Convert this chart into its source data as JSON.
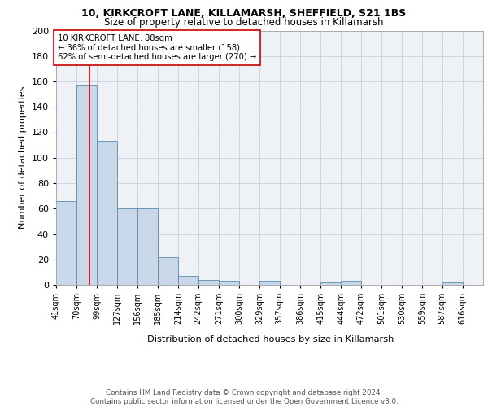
{
  "title1": "10, KIRKCROFT LANE, KILLAMARSH, SHEFFIELD, S21 1BS",
  "title2": "Size of property relative to detached houses in Killamarsh",
  "xlabel": "Distribution of detached houses by size in Killamarsh",
  "ylabel": "Number of detached properties",
  "bin_labels": [
    "41sqm",
    "70sqm",
    "99sqm",
    "127sqm",
    "156sqm",
    "185sqm",
    "214sqm",
    "242sqm",
    "271sqm",
    "300sqm",
    "329sqm",
    "357sqm",
    "386sqm",
    "415sqm",
    "444sqm",
    "472sqm",
    "501sqm",
    "530sqm",
    "559sqm",
    "587sqm",
    "616sqm"
  ],
  "bin_edges": [
    41,
    70,
    99,
    127,
    156,
    185,
    214,
    242,
    271,
    300,
    329,
    357,
    386,
    415,
    444,
    472,
    501,
    530,
    559,
    587,
    616
  ],
  "bar_heights": [
    66,
    157,
    113,
    60,
    60,
    22,
    7,
    4,
    3,
    0,
    3,
    0,
    0,
    2,
    3,
    0,
    0,
    0,
    0,
    2,
    0
  ],
  "bar_color": "#c8d8e8",
  "bar_edge_color": "#5a8ab0",
  "property_line_x": 88,
  "property_line_color": "#cc0000",
  "annotation_text": "10 KIRKCROFT LANE: 88sqm\n← 36% of detached houses are smaller (158)\n62% of semi-detached houses are larger (270) →",
  "annotation_box_color": "#ffffff",
  "annotation_box_edge": "#cc0000",
  "ylim": [
    0,
    200
  ],
  "yticks": [
    0,
    20,
    40,
    60,
    80,
    100,
    120,
    140,
    160,
    180,
    200
  ],
  "footer_text": "Contains HM Land Registry data © Crown copyright and database right 2024.\nContains public sector information licensed under the Open Government Licence v3.0.",
  "bg_color": "#eef2f7",
  "grid_color": "#c8d0da"
}
